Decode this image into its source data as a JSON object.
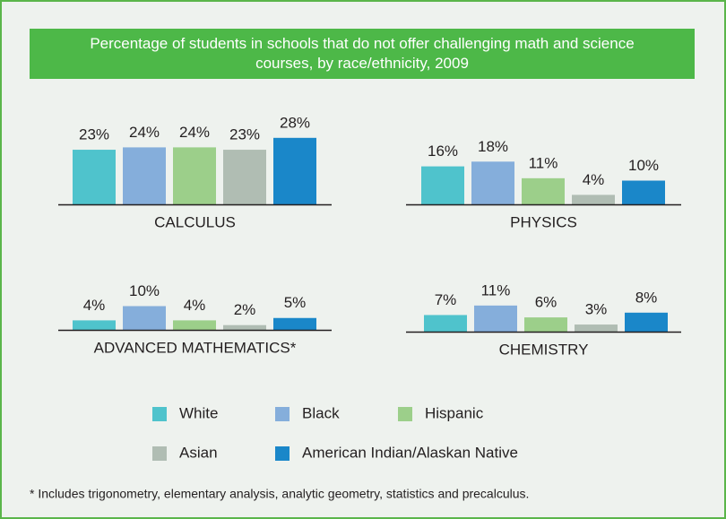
{
  "title": "Percentage of students in schools that do not offer challenging math and science courses, by race/ethnicity, 2009",
  "legend": [
    {
      "name": "White",
      "color": "#4fc3cc"
    },
    {
      "name": "Black",
      "color": "#85aedb"
    },
    {
      "name": "Hispanic",
      "color": "#9ccf8a"
    },
    {
      "name": "Asian",
      "color": "#b0bdb3"
    },
    {
      "name": "American Indian/Alaskan Native",
      "color": "#1a87c9"
    }
  ],
  "chart_data": [
    {
      "type": "bar",
      "title": "CALCULUS",
      "values": [
        23,
        24,
        24,
        23,
        28
      ],
      "value_labels": [
        "23%",
        "24%",
        "24%",
        "23%",
        "28%"
      ]
    },
    {
      "type": "bar",
      "title": "PHYSICS",
      "values": [
        16,
        18,
        11,
        4,
        10
      ],
      "value_labels": [
        "16%",
        "18%",
        "11%",
        "4%",
        "10%"
      ]
    },
    {
      "type": "bar",
      "title": "ADVANCED MATHEMATICS*",
      "values": [
        4,
        10,
        4,
        2,
        5
      ],
      "value_labels": [
        "4%",
        "10%",
        "4%",
        "2%",
        "5%"
      ]
    },
    {
      "type": "bar",
      "title": "CHEMISTRY",
      "values": [
        7,
        11,
        6,
        3,
        8
      ],
      "value_labels": [
        "7%",
        "11%",
        "6%",
        "3%",
        "8%"
      ]
    }
  ],
  "footnote": "* Includes trigonometry, elementary analysis, analytic geometry, statistics and precalculus."
}
